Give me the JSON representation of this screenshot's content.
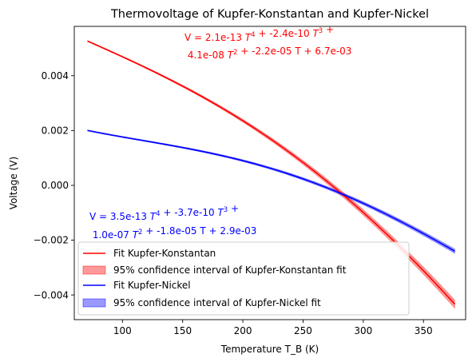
{
  "chart_data": {
    "type": "line",
    "title": "Thermovoltage of Kupfer-Konstantan and Kupfer-Nickel",
    "xlabel": "Temperature T_B (K)",
    "ylabel": "Voltage (V)",
    "xlim": [
      60,
      385
    ],
    "ylim": [
      -0.0049,
      0.0058
    ],
    "x_ticks": [
      100,
      150,
      200,
      250,
      300,
      350
    ],
    "x_tick_labels": [
      "100",
      "150",
      "200",
      "250",
      "300",
      "350"
    ],
    "y_ticks": [
      -0.004,
      -0.002,
      0.0,
      0.002,
      0.004
    ],
    "y_tick_labels": [
      "−0.004",
      "−0.002",
      "0.000",
      "0.002",
      "0.004"
    ],
    "grid": false,
    "legend_position": "lower-left",
    "series": [
      {
        "name": "Fit Kupfer-Konstantan",
        "color": "#ff0000",
        "coefficients": [
          2.1e-13,
          -2.4e-10,
          4.1e-08,
          -2.2e-05,
          0.0067
        ],
        "x": [
          71,
          100,
          150,
          200,
          250,
          270,
          300,
          350,
          376
        ],
        "y": [
          0.00525,
          0.00477,
          0.00383,
          0.00252,
          0.00088,
          7e-05,
          -0.00102,
          -0.00305,
          -0.00428
        ],
        "band_halfwidth_start": 2e-05,
        "band_halfwidth_end": 0.00015
      },
      {
        "name": "Fit Kupfer-Nickel",
        "color": "#0000ff",
        "coefficients": [
          3.5e-13,
          -3.7e-10,
          1e-07,
          -1.8e-05,
          0.0029
        ],
        "x": [
          71,
          100,
          150,
          200,
          250,
          270,
          300,
          350,
          376
        ],
        "y": [
          0.00198,
          0.0018,
          0.00145,
          0.00099,
          0.00044,
          8e-05,
          -0.00037,
          -0.00145,
          -0.00192
        ],
        "band_halfwidth_start": 2e-05,
        "band_halfwidth_end": 8e-05
      }
    ],
    "legend": [
      {
        "kind": "line",
        "label": "Fit Kupfer-Konstantan",
        "color": "#ff0000"
      },
      {
        "kind": "patch",
        "label": "95% confidence interval of Kupfer-Konstantan fit",
        "color": "#ff0000"
      },
      {
        "kind": "line",
        "label": "Fit Kupfer-Nickel",
        "color": "#0000ff"
      },
      {
        "kind": "patch",
        "label": "95% confidence interval of Kupfer-Nickel fit",
        "color": "#0000ff"
      }
    ],
    "annotations": [
      {
        "color": "#ff0000",
        "line1": [
          {
            "t": "V = 2.1e-13 "
          },
          {
            "t": "T",
            "i": true
          },
          {
            "t": "4",
            "sup": true
          },
          {
            "t": " + -2.4e-10 "
          },
          {
            "t": "T",
            "i": true
          },
          {
            "t": "3",
            "sup": true
          },
          {
            "t": " +"
          }
        ],
        "line2": [
          {
            "t": " 4.1e-08 "
          },
          {
            "t": "T",
            "i": true
          },
          {
            "t": "2",
            "sup": true
          },
          {
            "t": " + -2.2e-05 T + 6.7e-03"
          }
        ]
      },
      {
        "color": "#0000ff",
        "line1": [
          {
            "t": "V = 3.5e-13 "
          },
          {
            "t": "T",
            "i": true
          },
          {
            "t": "4",
            "sup": true
          },
          {
            "t": " + -3.7e-10 "
          },
          {
            "t": "T",
            "i": true
          },
          {
            "t": "3",
            "sup": true
          },
          {
            "t": " +"
          }
        ],
        "line2": [
          {
            "t": " 1.0e-07 "
          },
          {
            "t": "T",
            "i": true
          },
          {
            "t": "2",
            "sup": true
          },
          {
            "t": " + -1.8e-05 T + 2.9e-03"
          }
        ]
      }
    ]
  }
}
